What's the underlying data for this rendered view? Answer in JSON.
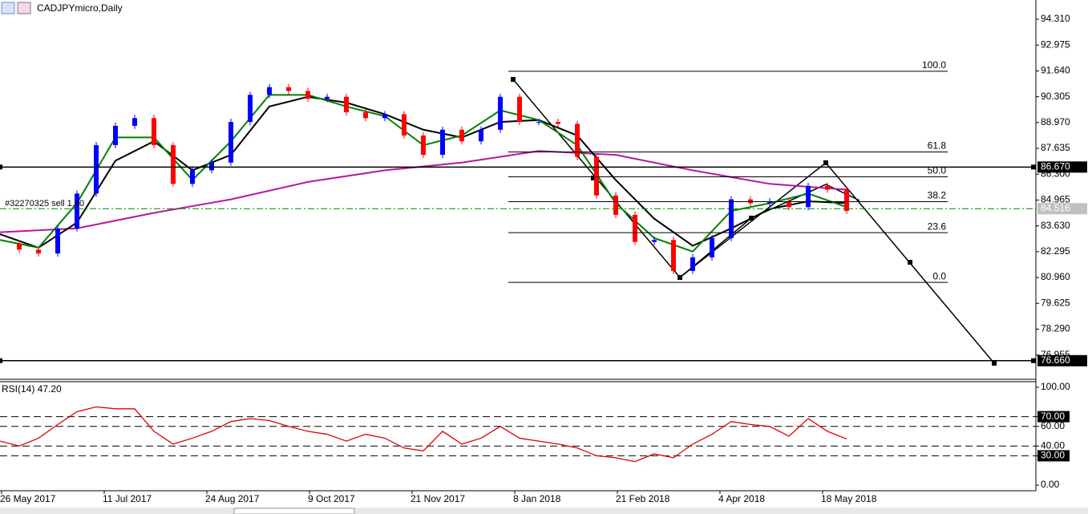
{
  "chart_data": [
    {
      "type": "candlestick",
      "title": "CADJPYmicro,Daily",
      "date_labels": [
        "26 May 2017",
        "11 Jul 2017",
        "24 Aug 2017",
        "9 Oct 2017",
        "21 Nov 2017",
        "8 Jan 2018",
        "21 Feb 2018",
        "4 Apr 2018",
        "18 May 2018"
      ],
      "up_color": "#0000ff",
      "down_color": "#ff0000",
      "closes": [
        82.7,
        82.4,
        82.2,
        83.5,
        85.3,
        87.8,
        88.8,
        89.2,
        87.8,
        85.8,
        86.5,
        86.9,
        89.0,
        90.4,
        90.8,
        90.6,
        90.2,
        90.3,
        89.5,
        89.2,
        89.4,
        88.3,
        87.3,
        88.6,
        88.0,
        88.6,
        90.3,
        89.0,
        89.0,
        88.9,
        87.2,
        85.2,
        84.2,
        82.8,
        82.9,
        81.3,
        82.0,
        83.0,
        85.0,
        84.8,
        84.9,
        84.6,
        85.7,
        85.5,
        84.4
      ],
      "moving_averages": [
        {
          "color": "#b5179e",
          "values": [
            83.3,
            83.5,
            84.3,
            85.0,
            85.9,
            86.5,
            86.9,
            87.5,
            87.3,
            86.5,
            85.8,
            85.5
          ]
        },
        {
          "color": "#000000",
          "values": [
            83.2,
            82.5,
            83.8,
            87.0,
            88.0,
            86.5,
            87.3,
            89.8,
            90.3,
            90.0,
            89.4,
            88.6,
            88.2,
            89.0,
            89.1,
            88.3,
            86.0,
            84.0,
            82.6,
            83.5,
            84.5,
            84.9,
            84.8
          ]
        },
        {
          "color": "#008000",
          "values": [
            82.9,
            82.5,
            84.8,
            88.2,
            88.2,
            86.0,
            88.0,
            90.4,
            90.4,
            89.8,
            89.3,
            87.8,
            88.3,
            89.6,
            89.1,
            87.8,
            84.8,
            83.0,
            82.3,
            84.4,
            84.8,
            85.3,
            84.6
          ]
        }
      ],
      "ylim": [
        75.74,
        95.305
      ],
      "yticks": [
        {
          "value": 94.31,
          "label": "94.310"
        },
        92.975,
        {
          "value": 91.64,
          "label": "91.640"
        },
        {
          "value": 90.305,
          "label": "90.305"
        },
        {
          "value": 88.97,
          "label": "88.970"
        },
        87.635,
        {
          "value": 86.3,
          "label": "86.300"
        },
        84.965,
        {
          "value": 83.63,
          "label": "83.630"
        },
        82.295,
        {
          "value": 80.96,
          "label": "80.960"
        },
        79.625,
        {
          "value": 78.29,
          "label": "78.290"
        },
        76.955
      ],
      "fibonacci": {
        "color": "#000000",
        "levels": [
          {
            "label": "100.0",
            "value": 91.62
          },
          {
            "label": "61.8",
            "value": 87.45
          },
          {
            "label": "50.0",
            "value": 86.165
          },
          {
            "label": "38.2",
            "value": 84.88
          },
          {
            "label": "23.6",
            "value": 83.28
          },
          {
            "label": "0.0",
            "value": 80.71
          }
        ]
      },
      "hlines": [
        {
          "value": 86.67,
          "label": "86.670",
          "color": "#000000",
          "style": "solid",
          "box": "#000000"
        },
        {
          "value": 76.66,
          "label": "76.660",
          "color": "#000000",
          "style": "solid",
          "box": "#000000"
        },
        {
          "value": 84.516,
          "color": "#008000",
          "style": "dashdot",
          "box": "#c0c0c0",
          "order_label": "#32270325 sell 1.60"
        }
      ]
    },
    {
      "type": "line",
      "title": "RSI(14) 47.20",
      "color": "#e00000",
      "values": [
        45,
        40,
        48,
        62,
        75,
        80,
        78,
        78,
        55,
        42,
        48,
        55,
        65,
        68,
        66,
        60,
        55,
        52,
        45,
        52,
        48,
        38,
        35,
        55,
        42,
        48,
        60,
        48,
        45,
        42,
        38,
        30,
        28,
        24,
        32,
        28,
        42,
        52,
        65,
        62,
        60,
        50,
        68,
        55,
        47.2
      ],
      "ylim": [
        -5.7,
        105.7
      ],
      "yticks": [
        {
          "value": 100,
          "label": "100.00"
        },
        {
          "value": 70,
          "label": "70.00"
        },
        {
          "value": 60,
          "label": "60.00"
        },
        {
          "value": 40,
          "label": "40.00"
        },
        {
          "value": 30,
          "label": "30.00"
        },
        {
          "value": 0,
          "label": "0.00"
        }
      ],
      "dashed_levels": [
        70,
        60,
        40,
        30
      ],
      "boxed_levels": [
        70,
        30
      ]
    }
  ]
}
